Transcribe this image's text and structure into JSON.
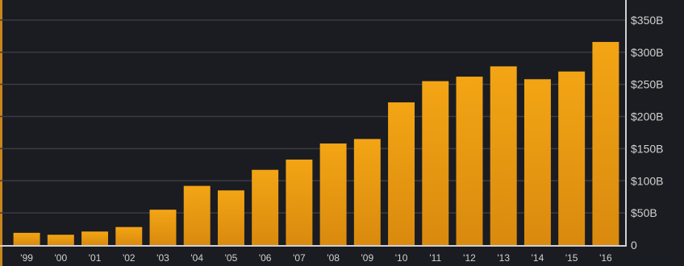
{
  "chart_data": {
    "type": "bar",
    "categories": [
      "'99",
      "'00",
      "'01",
      "'02",
      "'03",
      "'04",
      "'05",
      "'06",
      "'07",
      "'08",
      "'09",
      "'10",
      "'11",
      "'12",
      "'13",
      "'14",
      "'15",
      "'16"
    ],
    "values": [
      19,
      16,
      21,
      28,
      55,
      92,
      85,
      117,
      133,
      158,
      165,
      222,
      255,
      262,
      278,
      258,
      270,
      316
    ],
    "y_ticks": [
      0,
      50,
      100,
      150,
      200,
      250,
      300,
      350
    ],
    "y_tick_labels": [
      "0",
      "$50B",
      "$100B",
      "$150B",
      "$200B",
      "$250B",
      "$300B",
      "$350B"
    ],
    "ylim": [
      0,
      375
    ],
    "y_axis_position": "right",
    "grid": true,
    "title": "",
    "xlabel": "",
    "ylabel": "",
    "colors": {
      "bar": "#f0a012",
      "bar_dark": "#c27c10",
      "background": "#1b1c21",
      "grid": "#3a3b42"
    }
  }
}
